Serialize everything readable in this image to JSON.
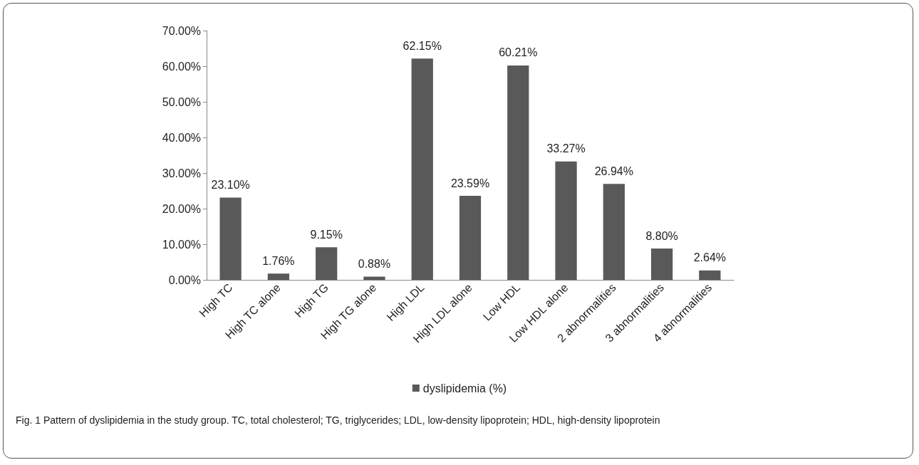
{
  "chart_data": {
    "type": "bar",
    "categories": [
      "High TC",
      "High TC alone",
      "High TG",
      "High TG alone",
      "High LDL",
      "High LDL alone",
      "Low HDL",
      "Low HDL alone",
      "2 abnormalities",
      "3 abnormalities",
      "4 abnormalities"
    ],
    "series": [
      {
        "name": "dyslipidemia (%)",
        "color": "#595959",
        "values": [
          23.1,
          1.76,
          9.15,
          0.88,
          62.15,
          23.59,
          60.21,
          33.27,
          26.94,
          8.8,
          2.64
        ],
        "value_labels": [
          "23.10%",
          "1.76%",
          "9.15%",
          "0.88%",
          "62.15%",
          "23.59%",
          "60.21%",
          "33.27%",
          "26.94%",
          "8.80%",
          "2.64%"
        ]
      }
    ],
    "ylim": [
      0,
      70
    ],
    "yticks": [
      {
        "value": 0,
        "label": "0.00%"
      },
      {
        "value": 10,
        "label": "10.00%"
      },
      {
        "value": 20,
        "label": "20.00%"
      },
      {
        "value": 30,
        "label": "30.00%"
      },
      {
        "value": 40,
        "label": "40.00%"
      },
      {
        "value": 50,
        "label": "50.00%"
      },
      {
        "value": 60,
        "label": "60.00%"
      },
      {
        "value": 70,
        "label": "70.00%"
      }
    ],
    "grid": false,
    "legend": "bottom",
    "annotations": [
      "Fig. 1 Pattern of dyslipidemia in the study group. TC, total cholesterol; TG, triglycerides; LDL, low-density lipoprotein; HDL, high-density lipoprotein"
    ]
  }
}
